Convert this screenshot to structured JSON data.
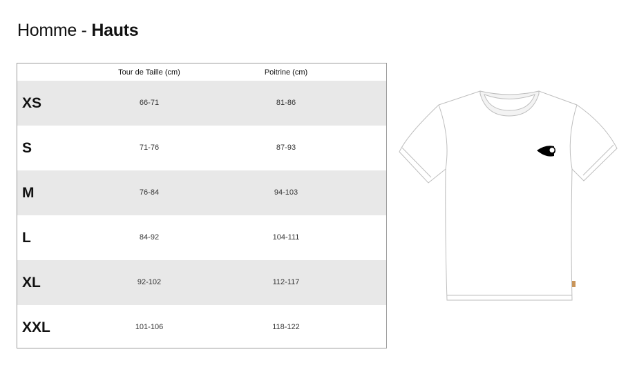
{
  "title": {
    "prefix": "Homme - ",
    "bold": "Hauts"
  },
  "table": {
    "headers": [
      "Tour de Taille (cm)",
      "Poitrine (cm)"
    ],
    "rows": [
      {
        "size": "XS",
        "taille": "66-71",
        "poitrine": "81-86"
      },
      {
        "size": "S",
        "taille": "71-76",
        "poitrine": "87-93"
      },
      {
        "size": "M",
        "taille": "76-84",
        "poitrine": "94-103"
      },
      {
        "size": "L",
        "taille": "84-92",
        "poitrine": "104-111"
      },
      {
        "size": "XL",
        "taille": "92-102",
        "poitrine": "112-117"
      },
      {
        "size": "XXL",
        "taille": "101-106",
        "poitrine": "118-122"
      }
    ]
  },
  "colors": {
    "stripe": "#e8e8e8",
    "label": "#c8955a"
  }
}
